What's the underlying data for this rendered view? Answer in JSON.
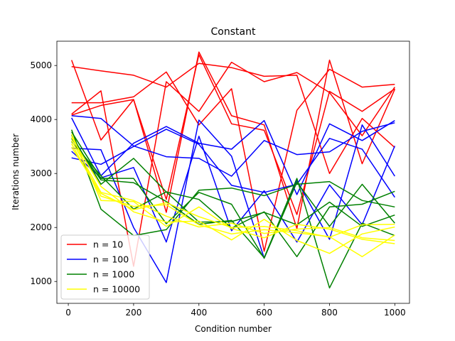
{
  "chart_data": {
    "type": "line",
    "title": "Constant",
    "xlabel": "Condition number",
    "ylabel": "Iterations number",
    "xlim": [
      -35,
      1045
    ],
    "ylim": [
      595,
      5450
    ],
    "x": [
      10,
      100,
      200,
      300,
      400,
      500,
      600,
      700,
      800,
      900,
      1000
    ],
    "xticks": [
      0,
      200,
      400,
      600,
      800,
      1000
    ],
    "yticks": [
      1000,
      2000,
      3000,
      4000,
      5000
    ],
    "legend_position": "lower-left",
    "grid": false,
    "groups": [
      {
        "name": "n = 10",
        "color": "#ff0000",
        "lines": [
          [
            4980,
            4900,
            4820,
            4600,
            5040,
            4960,
            4800,
            4820,
            3000,
            4020,
            3480
          ],
          [
            5100,
            3620,
            4370,
            2280,
            5250,
            4070,
            3900,
            1980,
            5100,
            3180,
            4560
          ],
          [
            4310,
            4310,
            4420,
            4880,
            3900,
            4570,
            1560,
            4170,
            4930,
            4600,
            4650
          ],
          [
            4100,
            4530,
            1280,
            4700,
            4150,
            5060,
            4700,
            4870,
            4500,
            3700,
            4600
          ],
          [
            4080,
            4260,
            4370,
            2520,
            5200,
            3920,
            3800,
            2240,
            4520,
            4150,
            4570
          ]
        ]
      },
      {
        "name": "n = 100",
        "color": "#0000ff",
        "lines": [
          [
            4070,
            4020,
            3510,
            3310,
            3280,
            2950,
            3610,
            3350,
            3400,
            3780,
            3940
          ],
          [
            4030,
            2960,
            3560,
            3870,
            3560,
            3450,
            3980,
            2610,
            3920,
            3610,
            3980
          ],
          [
            3470,
            3440,
            2000,
            980,
            3990,
            3320,
            1430,
            2870,
            1780,
            3900,
            2950
          ],
          [
            3410,
            2920,
            3110,
            1730,
            3690,
            1940,
            2680,
            1730,
            2790,
            2050,
            3510
          ],
          [
            3290,
            3170,
            3500,
            3820,
            3540,
            2780,
            2650,
            2800,
            3650,
            3450,
            2560
          ]
        ]
      },
      {
        "name": "n = 1000",
        "color": "#008000",
        "lines": [
          [
            3810,
            2340,
            1850,
            1960,
            2690,
            2730,
            2590,
            2800,
            2850,
            2500,
            2380
          ],
          [
            3770,
            2910,
            2910,
            2070,
            2650,
            2430,
            1430,
            2840,
            2020,
            2800,
            2080
          ],
          [
            3710,
            2800,
            3280,
            2660,
            2520,
            1990,
            2290,
            1460,
            2380,
            2430,
            2670
          ],
          [
            3650,
            2880,
            2830,
            2480,
            2060,
            2130,
            1440,
            2910,
            880,
            2080,
            1850
          ],
          [
            3590,
            2960,
            2340,
            2660,
            2100,
            2110,
            2280,
            2050,
            2470,
            2020,
            2230
          ]
        ]
      },
      {
        "name": "n = 10000",
        "color": "#ffff00",
        "lines": [
          [
            3730,
            2500,
            2480,
            2020,
            2380,
            1980,
            1810,
            2060,
            1970,
            1780,
            1700
          ],
          [
            3670,
            2760,
            2290,
            2100,
            2120,
            1770,
            2150,
            1760,
            1520,
            1880,
            2010
          ],
          [
            3610,
            2650,
            2500,
            2210,
            2010,
            2080,
            1890,
            1970,
            2000,
            1810,
            1760
          ],
          [
            3550,
            2580,
            2390,
            2420,
            2050,
            1880,
            1960,
            1900,
            1830,
            1460,
            1860
          ],
          [
            3490,
            2630,
            2330,
            2460,
            2200,
            2000,
            2020,
            1940,
            1820,
            2050,
            2060
          ]
        ]
      }
    ]
  }
}
